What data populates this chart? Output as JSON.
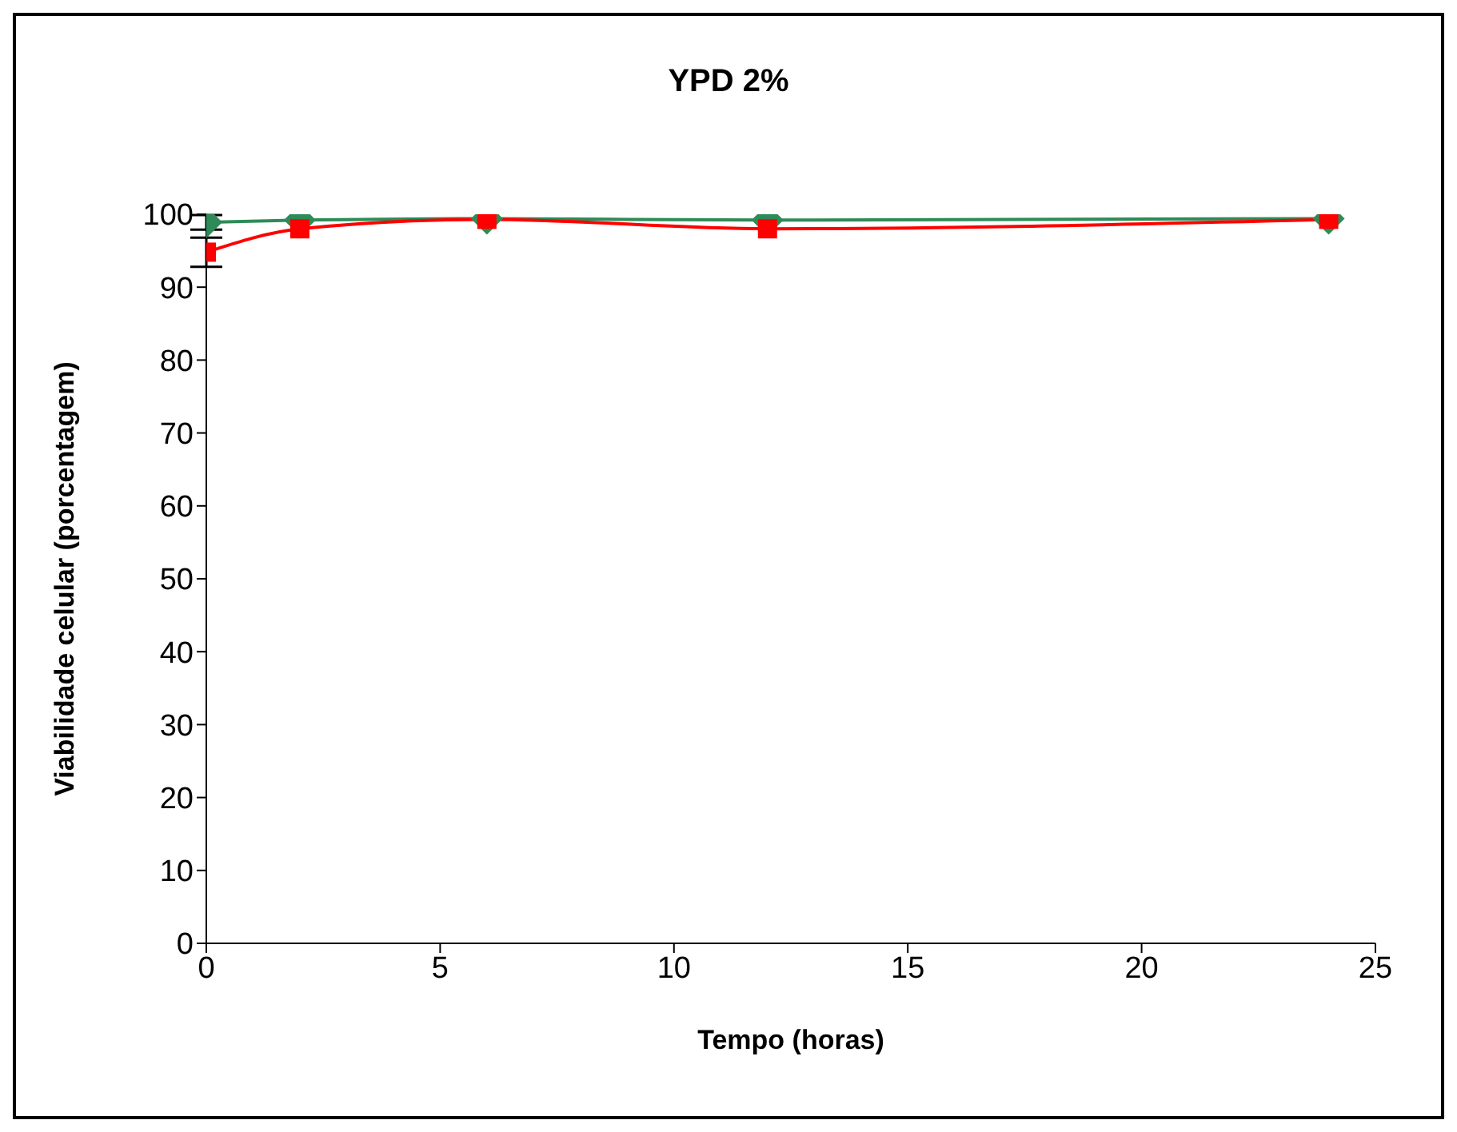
{
  "chart_data": {
    "type": "line",
    "title": "YPD 2%",
    "xlabel": "Tempo (horas)",
    "ylabel": "Viabilidade celular (porcentagem)",
    "x": [
      0,
      2,
      6,
      12,
      24
    ],
    "series": [
      {
        "color": "#2e8b57",
        "marker": "diamond",
        "values": [
          98.9,
          99.2,
          99.4,
          99.2,
          99.4
        ],
        "errors": [
          1,
          null,
          null,
          null,
          null
        ]
      },
      {
        "color": "#ff0000",
        "marker": "square",
        "values": [
          94.8,
          98,
          99.3,
          98,
          99.3
        ],
        "errors": [
          2,
          null,
          null,
          null,
          null
        ]
      }
    ],
    "xlim": [
      0,
      25
    ],
    "xticks": [
      0,
      5,
      10,
      15,
      20,
      25
    ],
    "ylim": [
      0,
      100
    ],
    "yticks": [
      0,
      10,
      20,
      30,
      40,
      50,
      60,
      70,
      80,
      90,
      100
    ],
    "grid": false,
    "line_style": "solid"
  }
}
